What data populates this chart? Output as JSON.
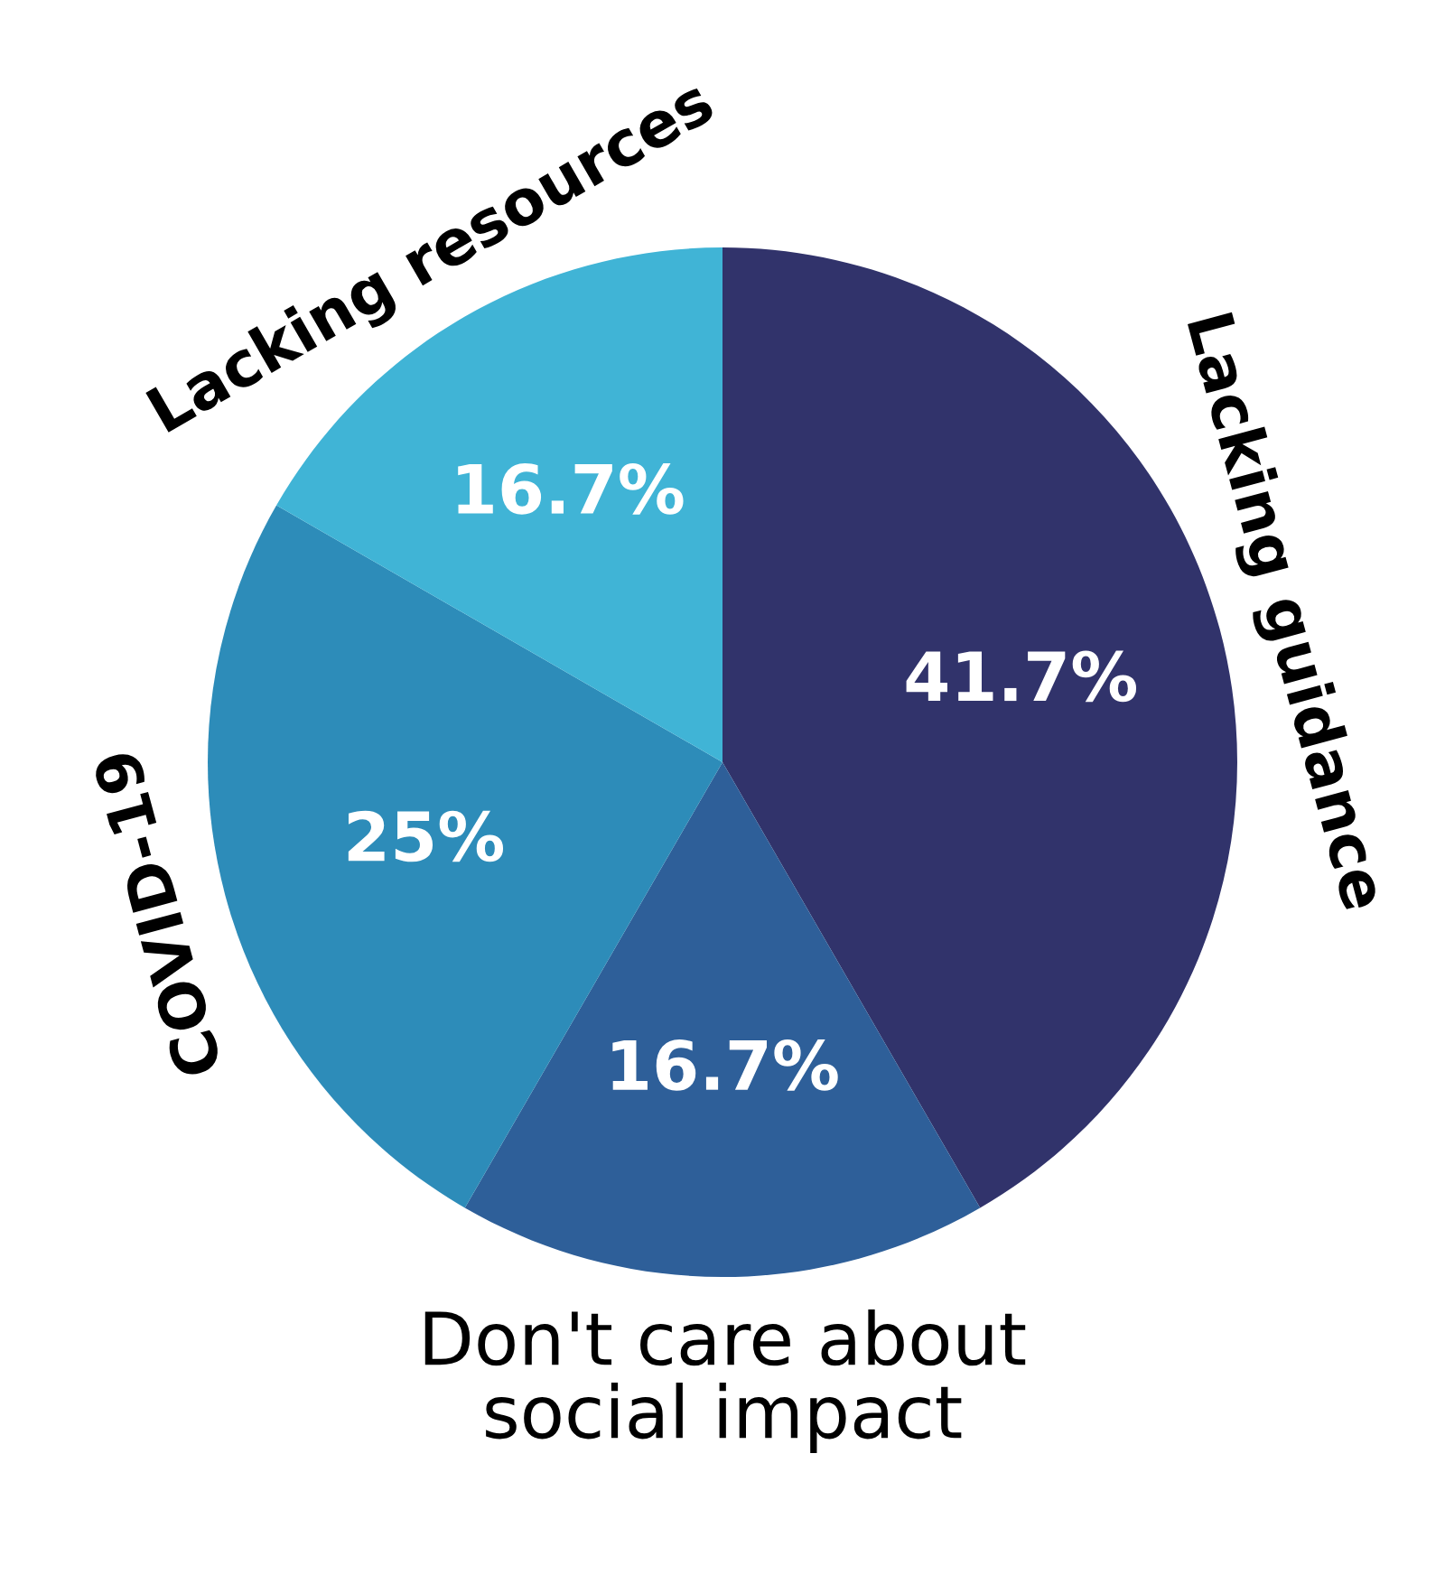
{
  "chart_data": {
    "type": "pie",
    "categories": [
      "Lacking guidance",
      "Don't care about\nsocial impact",
      "COVID-19",
      "Lacking resources"
    ],
    "values": [
      41.7,
      16.7,
      25,
      16.7
    ],
    "value_labels": [
      "41.7%",
      "16.7%",
      "25%",
      "16.7%"
    ],
    "colors": [
      "#31336b",
      "#2e5f99",
      "#2d8cb9",
      "#40b4d6"
    ],
    "legend": false
  }
}
